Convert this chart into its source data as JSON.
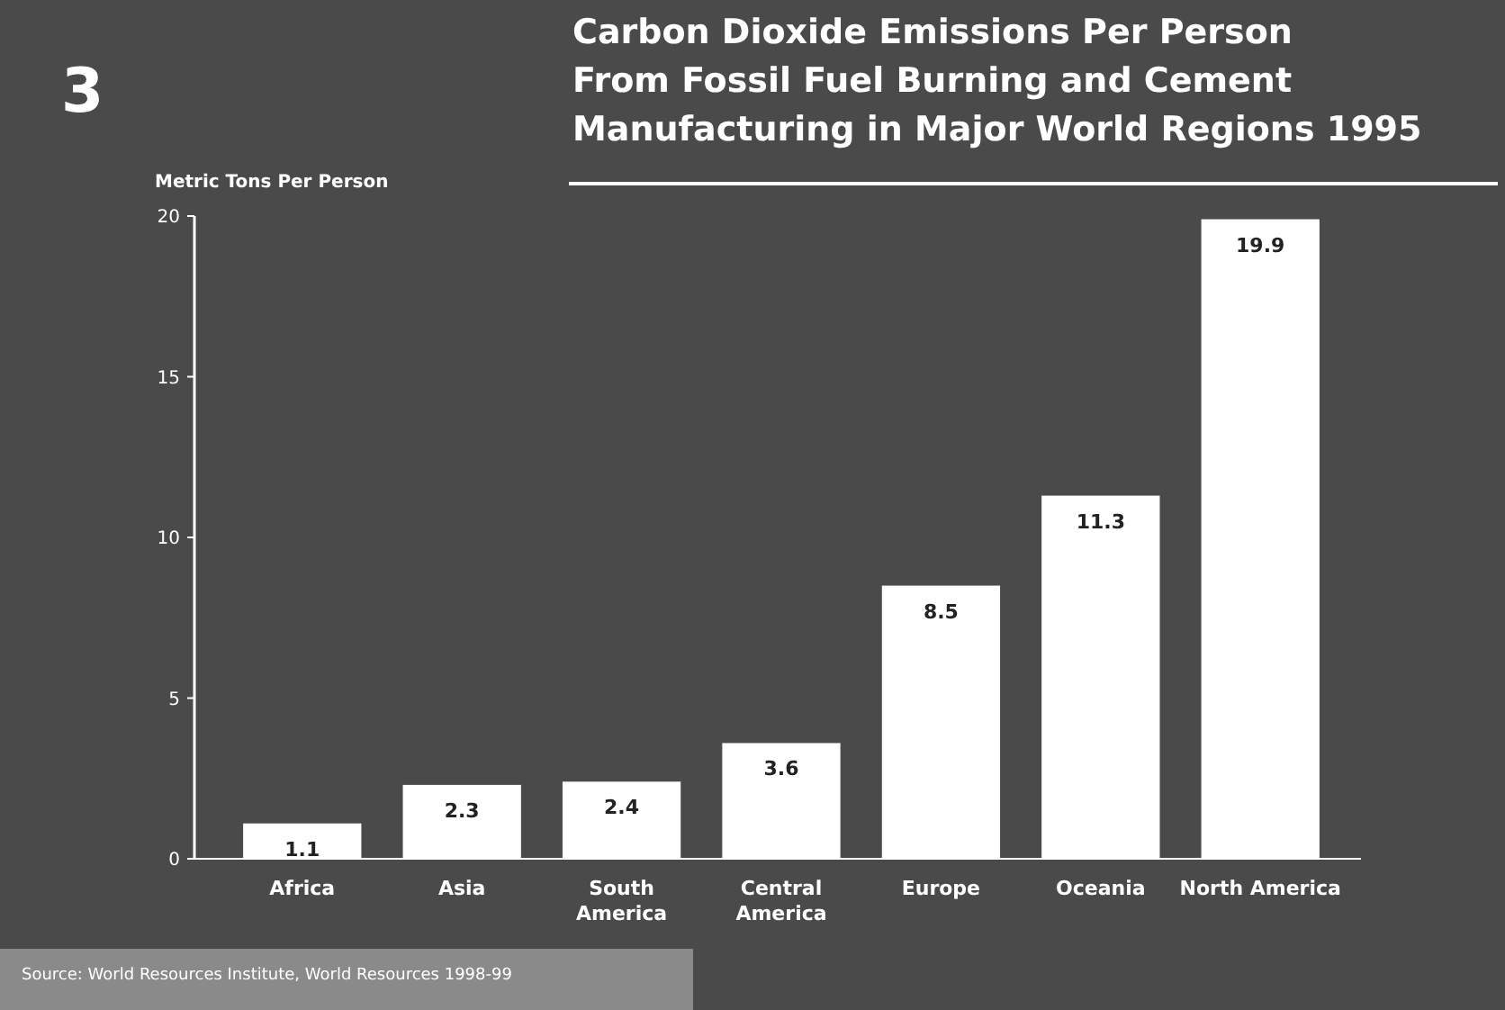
{
  "chart_data": {
    "type": "bar",
    "title": "Carbon Dioxide Emissions Per Person\nFrom Fossil Fuel Burning and Cement\nManufacturing in Major World Regions 1995",
    "ylabel": "Metric Tons Per Person",
    "categories": [
      "Africa",
      "Asia",
      "South\nAmerica",
      "Central\nAmerica",
      "Europe",
      "Oceania",
      "North America"
    ],
    "values": [
      1.1,
      2.3,
      2.4,
      3.6,
      8.5,
      11.3,
      19.9
    ],
    "color": "#ffffff",
    "data_labels": true,
    "ylim": [
      0,
      20
    ],
    "yticks": [
      0,
      5,
      10,
      15,
      20
    ],
    "grid": false,
    "annotations": [
      "3",
      "Source: World Resources Institute, World Resources 1998-99"
    ]
  }
}
